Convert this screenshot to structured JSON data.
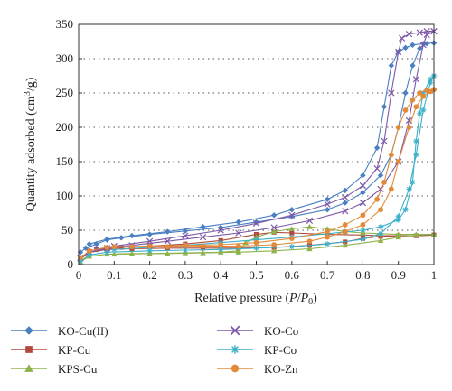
{
  "chart_data": {
    "type": "line",
    "xlabel": "Relative pressure (P/P0)",
    "ylabel": "Quantity adsorbed (cm3/g)",
    "xlim": [
      0,
      1
    ],
    "ylim": [
      0,
      350
    ],
    "xticks": [
      "0",
      "0.1",
      "0.2",
      "0.3",
      "0.4",
      "0.5",
      "0.6",
      "0.7",
      "0.8",
      "0.9",
      "1"
    ],
    "yticks": [
      "0",
      "50",
      "100",
      "150",
      "200",
      "250",
      "300",
      "350"
    ],
    "grid": "horizontal dotted",
    "legend_position": "bottom",
    "series": [
      {
        "name": "KO-Cu(II)",
        "color": "#4a7fc1",
        "marker": "diamond",
        "adsorption": [
          [
            0.005,
            18
          ],
          [
            0.02,
            24
          ],
          [
            0.05,
            30
          ],
          [
            0.08,
            36
          ],
          [
            0.12,
            39
          ],
          [
            0.2,
            44
          ],
          [
            0.3,
            49
          ],
          [
            0.4,
            54
          ],
          [
            0.5,
            62
          ],
          [
            0.6,
            70
          ],
          [
            0.7,
            80
          ],
          [
            0.75,
            90
          ],
          [
            0.8,
            105
          ],
          [
            0.85,
            130
          ],
          [
            0.88,
            160
          ],
          [
            0.9,
            200
          ],
          [
            0.92,
            250
          ],
          [
            0.94,
            290
          ],
          [
            0.96,
            315
          ],
          [
            0.98,
            322
          ],
          [
            1.0,
            323
          ]
        ],
        "desorption": [
          [
            1.0,
            323
          ],
          [
            0.97,
            322
          ],
          [
            0.94,
            320
          ],
          [
            0.92,
            316
          ],
          [
            0.9,
            310
          ],
          [
            0.88,
            290
          ],
          [
            0.86,
            230
          ],
          [
            0.84,
            170
          ],
          [
            0.8,
            130
          ],
          [
            0.75,
            108
          ],
          [
            0.7,
            95
          ],
          [
            0.6,
            80
          ],
          [
            0.55,
            72
          ],
          [
            0.45,
            62
          ],
          [
            0.35,
            55
          ],
          [
            0.25,
            48
          ],
          [
            0.15,
            42
          ],
          [
            0.08,
            37
          ],
          [
            0.03,
            30
          ]
        ]
      },
      {
        "name": "KP-Cu",
        "color": "#b04a3c",
        "marker": "square",
        "adsorption": [
          [
            0.005,
            8
          ],
          [
            0.03,
            18
          ],
          [
            0.08,
            22
          ],
          [
            0.15,
            23
          ],
          [
            0.25,
            24
          ],
          [
            0.35,
            24
          ],
          [
            0.45,
            24
          ],
          [
            0.55,
            25
          ],
          [
            0.65,
            28
          ],
          [
            0.75,
            33
          ],
          [
            0.8,
            38
          ],
          [
            0.85,
            41
          ],
          [
            0.9,
            42
          ],
          [
            0.95,
            42
          ],
          [
            1.0,
            43
          ]
        ],
        "desorption": [
          [
            1.0,
            43
          ],
          [
            0.95,
            42
          ],
          [
            0.9,
            42
          ],
          [
            0.85,
            42
          ],
          [
            0.8,
            43
          ],
          [
            0.7,
            44
          ],
          [
            0.6,
            46
          ],
          [
            0.55,
            47
          ],
          [
            0.5,
            44
          ],
          [
            0.4,
            35
          ],
          [
            0.3,
            30
          ],
          [
            0.2,
            27
          ],
          [
            0.12,
            25
          ],
          [
            0.05,
            22
          ]
        ]
      },
      {
        "name": "KPS-Cu",
        "color": "#8db24a",
        "marker": "triangle",
        "adsorption": [
          [
            0.005,
            4
          ],
          [
            0.03,
            12
          ],
          [
            0.08,
            15
          ],
          [
            0.15,
            16
          ],
          [
            0.25,
            16
          ],
          [
            0.35,
            17
          ],
          [
            0.45,
            18
          ],
          [
            0.55,
            20
          ],
          [
            0.65,
            23
          ],
          [
            0.75,
            28
          ],
          [
            0.85,
            35
          ],
          [
            0.9,
            40
          ],
          [
            0.95,
            43
          ],
          [
            1.0,
            44
          ]
        ],
        "desorption": [
          [
            1.0,
            44
          ],
          [
            0.95,
            44
          ],
          [
            0.9,
            44
          ],
          [
            0.85,
            45
          ],
          [
            0.8,
            46
          ],
          [
            0.75,
            48
          ],
          [
            0.7,
            52
          ],
          [
            0.65,
            55
          ],
          [
            0.6,
            52
          ],
          [
            0.55,
            48
          ],
          [
            0.5,
            40
          ],
          [
            0.47,
            32
          ],
          [
            0.45,
            20
          ],
          [
            0.4,
            18
          ],
          [
            0.3,
            17
          ],
          [
            0.2,
            16
          ],
          [
            0.1,
            15
          ]
        ]
      },
      {
        "name": "KO-Co",
        "color": "#7d5aa8",
        "marker": "x",
        "adsorption": [
          [
            0.005,
            10
          ],
          [
            0.03,
            18
          ],
          [
            0.08,
            24
          ],
          [
            0.15,
            28
          ],
          [
            0.25,
            34
          ],
          [
            0.35,
            40
          ],
          [
            0.45,
            46
          ],
          [
            0.55,
            54
          ],
          [
            0.65,
            64
          ],
          [
            0.75,
            78
          ],
          [
            0.8,
            90
          ],
          [
            0.85,
            110
          ],
          [
            0.9,
            150
          ],
          [
            0.93,
            210
          ],
          [
            0.95,
            270
          ],
          [
            0.97,
            320
          ],
          [
            0.98,
            335
          ],
          [
            1.0,
            340
          ]
        ],
        "desorption": [
          [
            1.0,
            340
          ],
          [
            0.98,
            340
          ],
          [
            0.96,
            338
          ],
          [
            0.93,
            336
          ],
          [
            0.91,
            330
          ],
          [
            0.9,
            310
          ],
          [
            0.88,
            250
          ],
          [
            0.86,
            180
          ],
          [
            0.84,
            140
          ],
          [
            0.8,
            115
          ],
          [
            0.75,
            98
          ],
          [
            0.7,
            88
          ],
          [
            0.6,
            72
          ],
          [
            0.5,
            60
          ],
          [
            0.4,
            50
          ],
          [
            0.3,
            42
          ],
          [
            0.2,
            34
          ],
          [
            0.1,
            27
          ],
          [
            0.05,
            22
          ]
        ]
      },
      {
        "name": "KP-Co",
        "color": "#3bb0c9",
        "marker": "asterisk",
        "adsorption": [
          [
            0.005,
            5
          ],
          [
            0.03,
            14
          ],
          [
            0.08,
            18
          ],
          [
            0.2,
            20
          ],
          [
            0.3,
            21
          ],
          [
            0.4,
            22
          ],
          [
            0.5,
            24
          ],
          [
            0.6,
            26
          ],
          [
            0.7,
            30
          ],
          [
            0.8,
            37
          ],
          [
            0.85,
            45
          ],
          [
            0.9,
            70
          ],
          [
            0.93,
            110
          ],
          [
            0.95,
            160
          ],
          [
            0.97,
            225
          ],
          [
            0.99,
            265
          ],
          [
            1.0,
            275
          ]
        ],
        "desorption": [
          [
            1.0,
            275
          ],
          [
            0.99,
            270
          ],
          [
            0.97,
            250
          ],
          [
            0.96,
            220
          ],
          [
            0.95,
            180
          ],
          [
            0.94,
            120
          ],
          [
            0.92,
            80
          ],
          [
            0.9,
            65
          ],
          [
            0.85,
            55
          ],
          [
            0.8,
            50
          ],
          [
            0.7,
            45
          ],
          [
            0.6,
            40
          ],
          [
            0.5,
            36
          ],
          [
            0.4,
            32
          ],
          [
            0.3,
            28
          ],
          [
            0.2,
            25
          ],
          [
            0.1,
            22
          ]
        ]
      },
      {
        "name": "KO-Zn",
        "color": "#e28a3a",
        "marker": "circle",
        "adsorption": [
          [
            0.005,
            10
          ],
          [
            0.03,
            20
          ],
          [
            0.08,
            25
          ],
          [
            0.15,
            26
          ],
          [
            0.25,
            26
          ],
          [
            0.35,
            27
          ],
          [
            0.45,
            27
          ],
          [
            0.55,
            29
          ],
          [
            0.65,
            34
          ],
          [
            0.7,
            40
          ],
          [
            0.75,
            48
          ],
          [
            0.8,
            58
          ],
          [
            0.85,
            80
          ],
          [
            0.88,
            110
          ],
          [
            0.9,
            150
          ],
          [
            0.93,
            200
          ],
          [
            0.95,
            230
          ],
          [
            0.97,
            245
          ],
          [
            0.99,
            252
          ],
          [
            1.0,
            255
          ]
        ],
        "desorption": [
          [
            1.0,
            255
          ],
          [
            0.98,
            254
          ],
          [
            0.96,
            250
          ],
          [
            0.94,
            240
          ],
          [
            0.92,
            225
          ],
          [
            0.9,
            200
          ],
          [
            0.88,
            160
          ],
          [
            0.86,
            120
          ],
          [
            0.84,
            95
          ],
          [
            0.8,
            72
          ],
          [
            0.75,
            58
          ],
          [
            0.7,
            48
          ],
          [
            0.6,
            38
          ],
          [
            0.5,
            32
          ],
          [
            0.4,
            29
          ],
          [
            0.3,
            28
          ],
          [
            0.2,
            27
          ],
          [
            0.1,
            26
          ]
        ]
      }
    ]
  }
}
